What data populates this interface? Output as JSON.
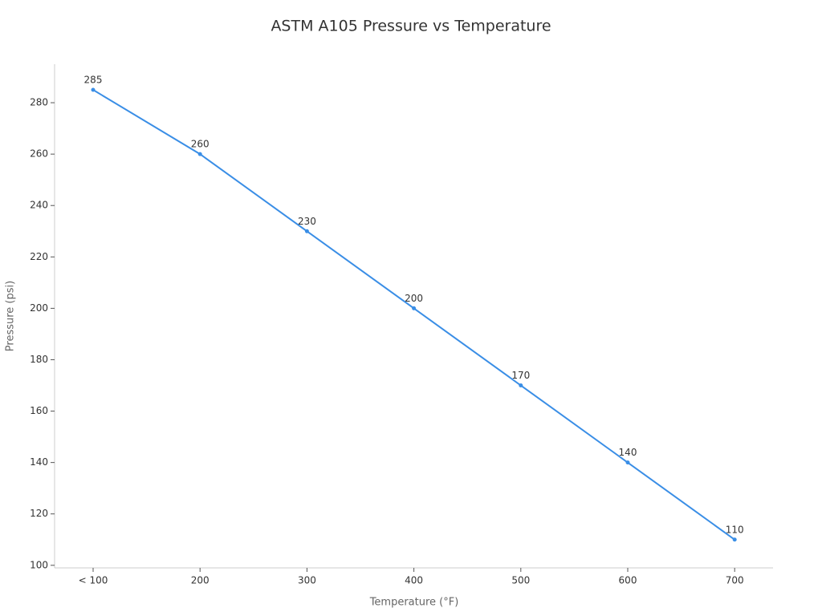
{
  "chart_data": {
    "type": "line",
    "title": "ASTM A105 Pressure vs Temperature",
    "x_label": "Temperature (°F)",
    "y_label": "Pressure (psi)",
    "categories": [
      "< 100",
      "200",
      "300",
      "400",
      "500",
      "600",
      "700"
    ],
    "series": [
      {
        "name": "Pressure",
        "color": "#3a8ee6",
        "values": [
          285,
          260,
          230,
          200,
          170,
          140,
          110
        ]
      }
    ],
    "ylim": [
      99,
      295
    ],
    "yticks": [
      100,
      120,
      140,
      160,
      180,
      200,
      220,
      240,
      260,
      280
    ],
    "grid": false
  }
}
